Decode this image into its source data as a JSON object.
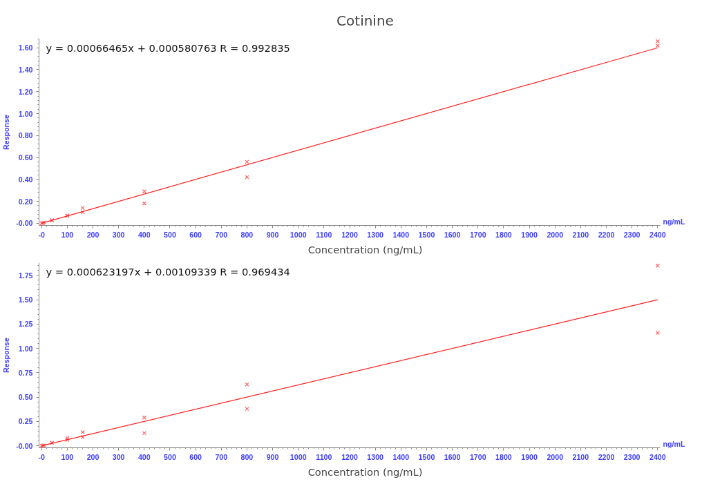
{
  "chart_data": [
    {
      "type": "scatter",
      "title": "Cotinine",
      "xlabel": "Concentration (ng/mL)",
      "ylabel": "Response",
      "marker": "cross",
      "grid": false,
      "annotations": [
        "y = 0.00066465x + 0.000580763   R = 0.992835",
        "ng/mL"
      ],
      "xlim": [
        -10,
        2410
      ],
      "ylim": [
        -0.02,
        1.68
      ],
      "xticks": [
        {
          "value": 0,
          "label": "-0"
        },
        100,
        200,
        300,
        400,
        500,
        600,
        700,
        800,
        900,
        1000,
        1100,
        1200,
        1300,
        1400,
        1500,
        1600,
        1700,
        1800,
        1900,
        2000,
        2100,
        2200,
        2300,
        2400
      ],
      "yticks": [
        {
          "value": 0,
          "label": "-0.00"
        },
        {
          "value": 0.2,
          "label": "0.20"
        },
        {
          "value": 0.4,
          "label": "0.40"
        },
        {
          "value": 0.6,
          "label": "0.60"
        },
        {
          "value": 0.8,
          "label": "0.80"
        },
        {
          "value": 1,
          "label": "1.00"
        },
        {
          "value": 1.2,
          "label": "1.20"
        },
        {
          "value": 1.4,
          "label": "1.40"
        },
        {
          "value": 1.6,
          "label": "1.60"
        }
      ],
      "series": [
        {
          "color": "#ff6060",
          "x": [
            0,
            5,
            10,
            40,
            40,
            100,
            100,
            160,
            160,
            400,
            400,
            800,
            800,
            2400,
            2400
          ],
          "values": [
            0,
            0.003,
            0.006,
            0.025,
            0.028,
            0.07,
            0.068,
            0.14,
            0.1,
            0.29,
            0.18,
            0.56,
            0.42,
            1.66,
            1.62
          ]
        },
        {
          "type": "line",
          "color": "#ff2020",
          "marker": "none",
          "x": [
            0,
            2400
          ],
          "values": [
            0.0,
            1.6
          ]
        }
      ]
    },
    {
      "type": "scatter",
      "xlabel": "Concentration (ng/mL)",
      "ylabel": "Response",
      "marker": "cross",
      "grid": false,
      "annotations": [
        "y = 0.000623197x + 0.00109339   R = 0.969434",
        "ng/mL"
      ],
      "xlim": [
        -10,
        2410
      ],
      "ylim": [
        -0.02,
        1.88
      ],
      "xticks": [
        {
          "value": 0,
          "label": "-0"
        },
        100,
        200,
        300,
        400,
        500,
        600,
        700,
        800,
        900,
        1000,
        1100,
        1200,
        1300,
        1400,
        1500,
        1600,
        1700,
        1800,
        1900,
        2000,
        2100,
        2200,
        2300,
        2400
      ],
      "yticks": [
        {
          "value": 0,
          "label": "-0.00"
        },
        {
          "value": 0.25,
          "label": "0.25"
        },
        {
          "value": 0.5,
          "label": "0.50"
        },
        {
          "value": 0.75,
          "label": "0.75"
        },
        {
          "value": 1,
          "label": "1.00"
        },
        {
          "value": 1.25,
          "label": "1.25"
        },
        {
          "value": 1.5,
          "label": "1.50"
        },
        {
          "value": 1.75,
          "label": "1.75"
        }
      ],
      "series": [
        {
          "color": "#ff6060",
          "x": [
            0,
            5,
            10,
            40,
            40,
            100,
            100,
            160,
            160,
            400,
            400,
            800,
            800,
            2400,
            2400
          ],
          "values": [
            0,
            0.002,
            0.004,
            0.03,
            0.03,
            0.08,
            0.06,
            0.14,
            0.09,
            0.29,
            0.13,
            0.63,
            0.38,
            1.85,
            1.16
          ]
        },
        {
          "type": "line",
          "color": "#ff2020",
          "marker": "none",
          "x": [
            0,
            2400
          ],
          "values": [
            0.0,
            1.5
          ]
        }
      ]
    }
  ]
}
